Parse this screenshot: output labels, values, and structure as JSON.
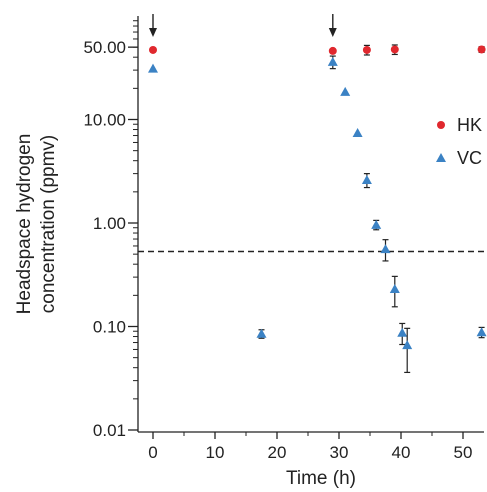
{
  "chart_data": {
    "type": "scatter",
    "xlabel": "Time (h)",
    "ylabel": "Headspace hydrogen concentration (ppmv)",
    "x_ticks": [
      0,
      10,
      20,
      30,
      40,
      50
    ],
    "x_tick_labels": [
      "0",
      "10",
      "20",
      "30",
      "40",
      "50"
    ],
    "xlim": [
      -2,
      56
    ],
    "y_scale": "log",
    "ylim": [
      0.01,
      90
    ],
    "y_ticks": [
      0.01,
      0.1,
      1,
      10,
      50
    ],
    "y_tick_labels": [
      "0.01",
      "0.10",
      "1.00",
      "10.00",
      "50.00"
    ],
    "reference_line": {
      "y": 0.53,
      "style": "dashed"
    },
    "arrows_at_x": [
      0,
      29
    ],
    "legend_position": "right",
    "colors": {
      "HK": "#e0282e",
      "VC": "#3b82c4"
    },
    "series": [
      {
        "name": "HK",
        "marker": "circle",
        "points": [
          {
            "x": 0,
            "y": 47,
            "err": 0
          },
          {
            "x": 29,
            "y": 46,
            "err": 0
          },
          {
            "x": 34.5,
            "y": 47,
            "err": 5
          },
          {
            "x": 39,
            "y": 47.5,
            "err": 5
          },
          {
            "x": 53,
            "y": 47.5,
            "err": 3
          }
        ]
      },
      {
        "name": "VC",
        "marker": "triangle",
        "points": [
          {
            "x": 0,
            "y": 31,
            "err": 0
          },
          {
            "x": 17.5,
            "y": 0.085,
            "err": 0.008
          },
          {
            "x": 29,
            "y": 36,
            "err": 5
          },
          {
            "x": 31,
            "y": 18.5,
            "err": 0
          },
          {
            "x": 33,
            "y": 7.4,
            "err": 0
          },
          {
            "x": 34.5,
            "y": 2.6,
            "err": 0.4
          },
          {
            "x": 36,
            "y": 0.96,
            "err": 0.1
          },
          {
            "x": 37.5,
            "y": 0.56,
            "err": 0.13
          },
          {
            "x": 39,
            "y": 0.23,
            "err": 0.075
          },
          {
            "x": 40.2,
            "y": 0.087,
            "err": 0.02
          },
          {
            "x": 41,
            "y": 0.066,
            "err": 0.03
          },
          {
            "x": 53,
            "y": 0.088,
            "err": 0.01
          }
        ]
      }
    ]
  }
}
